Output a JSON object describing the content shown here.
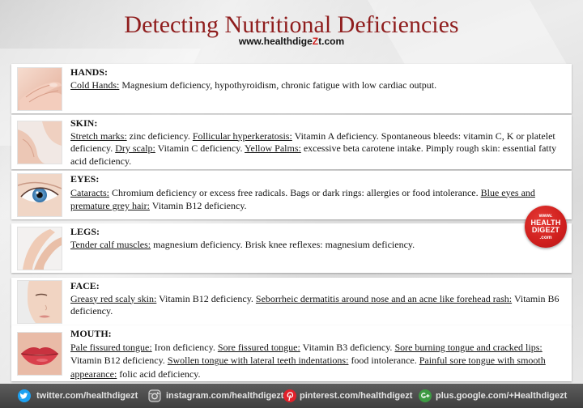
{
  "header": {
    "title": "Detecting Nutritional Deficiencies",
    "site_prefix": "www.healthdige",
    "site_z": "Z",
    "site_suffix": "t.com"
  },
  "sections": [
    {
      "heading": "HANDS:",
      "image": "hands-photo",
      "items": [
        {
          "term": "Cold Hands:",
          "desc": "Magnesium deficiency, hypothyroidism, chronic fatigue with low cardiac output."
        }
      ]
    },
    {
      "heading": "SKIN:",
      "image": "skin-photo",
      "items": [
        {
          "term": "Stretch marks:",
          "desc": "zinc deficiency."
        },
        {
          "term": "Follicular hyperkeratosis:",
          "desc": "Vitamin A deficiency. Spontaneous bleeds: vitamin C, K or platelet deficiency."
        },
        {
          "term": "Dry scalp:",
          "desc": "Vitamin C deficiency."
        },
        {
          "term": "Yellow Palms:",
          "desc": "excessive beta carotene intake. Pimply rough skin: essential fatty acid deficiency."
        }
      ]
    },
    {
      "heading": "EYES:",
      "image": "eye-photo",
      "items": [
        {
          "term": "Cataracts:",
          "desc": "Chromium deficiency or excess free radicals. Bags or dark rings: allergies or food intolerance."
        },
        {
          "term": "Blue eyes and premature grey hair:",
          "desc": "Vitamin B12 deficiency."
        }
      ]
    },
    {
      "heading": "LEGS:",
      "image": "legs-photo",
      "items": [
        {
          "term": "Tender calf muscles:",
          "desc": "magnesium deficiency. Brisk knee reflexes: magnesium deficiency."
        }
      ]
    },
    {
      "heading": "FACE:",
      "image": "face-photo",
      "items": [
        {
          "term": "Greasy red scaly skin:",
          "desc": "Vitamin B12 deficiency."
        },
        {
          "term": "Seborrheic dermatitis around nose and an acne like forehead rash:",
          "desc": "Vitamin B6 deficiency."
        }
      ]
    },
    {
      "heading": "MOUTH:",
      "image": "lips-photo",
      "items": [
        {
          "term": "Pale fissured tongue:",
          "desc": "Iron deficiency."
        },
        {
          "term": "Sore fissured tongue:",
          "desc": "Vitamin B3 deficiency."
        },
        {
          "term": "Sore burning tongue and cracked lips:",
          "desc": "Vitamin B12 deficiency."
        },
        {
          "term": "Swollen tongue with lateral teeth indentations:",
          "desc": "food intolerance."
        },
        {
          "term": "Painful sore tongue with smooth appearance:",
          "desc": "folic acid deficiency."
        }
      ]
    }
  ],
  "badge": {
    "line1": "www.",
    "line2": "HEALTH",
    "line3": "DIGEZT",
    "line4": ".com",
    "color": "#cf1f1d"
  },
  "footer": {
    "links": [
      {
        "icon": "twitter-icon",
        "label": "twitter.com/healthdigezt",
        "color": "#1da1f2"
      },
      {
        "icon": "instagram-icon",
        "label": "instagram.com/healthdigezt",
        "color": "#bdbdbd"
      },
      {
        "icon": "pinterest-icon",
        "label": "pinterest.com/healthdigezt",
        "color": "#e2202a"
      },
      {
        "icon": "google-plus-icon",
        "label": "plus.google.com/+Healthdigezt",
        "color": "#3d9a43"
      }
    ]
  },
  "colors": {
    "title": "#8f1d1d",
    "accent": "#d0201e",
    "footer_bg": "#4a4a4a"
  }
}
